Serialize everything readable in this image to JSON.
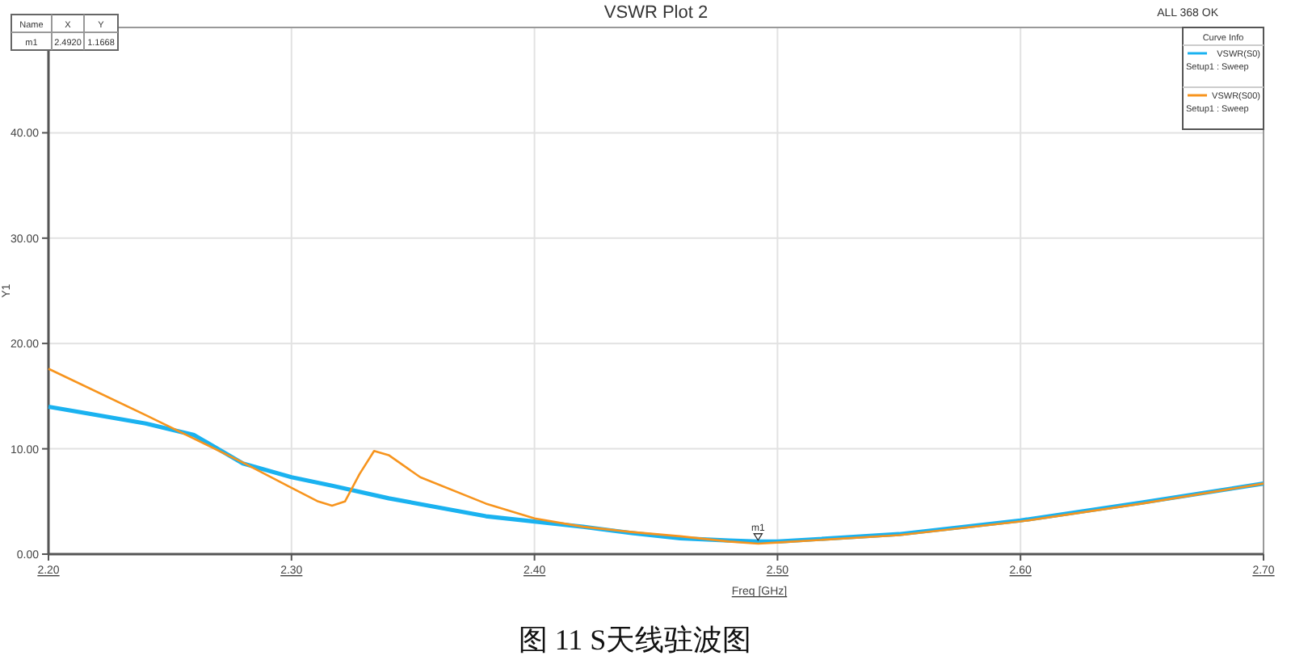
{
  "chart_data": {
    "type": "line",
    "title": "VSWR Plot 2",
    "xlabel": "Freq [GHz]",
    "ylabel": "Y1",
    "legend_title": "Curve Info",
    "annotations": [
      "ALL 368 OK",
      "Name",
      "X",
      "Y",
      "m1",
      "2.4920",
      "1.1668",
      "Setup1 : Sweep",
      "Setup1 : Sweep",
      {
        "text": "m1",
        "x": 2.492,
        "y": 1.1668
      },
      "图 11 S天线驻波图"
    ],
    "xlim": [
      2.2,
      2.7
    ],
    "ylim": [
      0,
      50
    ],
    "xticks": [
      {
        "value": 2.2,
        "label": "2.20"
      },
      {
        "value": 2.3,
        "label": "2.30"
      },
      {
        "value": 2.4,
        "label": "2.40"
      },
      {
        "value": 2.5,
        "label": "2.50"
      },
      {
        "value": 2.6,
        "label": "2.60"
      },
      {
        "value": 2.7,
        "label": "2.70"
      }
    ],
    "yticks": [
      {
        "value": 0,
        "label": "0.00"
      },
      {
        "value": 10,
        "label": "10.00"
      },
      {
        "value": 20,
        "label": "20.00"
      },
      {
        "value": 30,
        "label": "30.00"
      },
      {
        "value": 40,
        "label": "40.00"
      }
    ],
    "grid": true,
    "legend": "top right",
    "series": [
      {
        "name": "VSWR(S0)",
        "color": "#1ab2f0",
        "x": [
          2.2,
          2.24,
          2.26,
          2.28,
          2.3,
          2.3167,
          2.34,
          2.38,
          2.4,
          2.42,
          2.44,
          2.46,
          2.48,
          2.492,
          2.5,
          2.55,
          2.6,
          2.65,
          2.7
        ],
        "values": [
          14.0,
          12.4,
          11.3,
          8.6,
          7.3,
          6.5,
          5.3,
          3.6,
          3.1,
          2.6,
          2.0,
          1.5,
          1.3,
          1.2,
          1.2,
          1.9,
          3.2,
          4.9,
          6.7
        ]
      },
      {
        "name": "VSWR(S00)",
        "color": "#f7941d",
        "x": [
          2.2,
          2.24,
          2.28,
          2.3,
          2.311,
          2.3167,
          2.322,
          2.328,
          2.334,
          2.34,
          2.353,
          2.38,
          2.4,
          2.42,
          2.44,
          2.46,
          2.48,
          2.492,
          2.5,
          2.55,
          2.6,
          2.65,
          2.7
        ],
        "values": [
          17.6,
          13.2,
          8.7,
          6.3,
          5.0,
          4.6,
          5.0,
          7.6,
          9.8,
          9.4,
          7.3,
          4.8,
          3.4,
          2.6,
          2.1,
          1.7,
          1.2,
          1.0,
          1.1,
          1.8,
          3.1,
          4.8,
          6.7
        ]
      }
    ]
  }
}
